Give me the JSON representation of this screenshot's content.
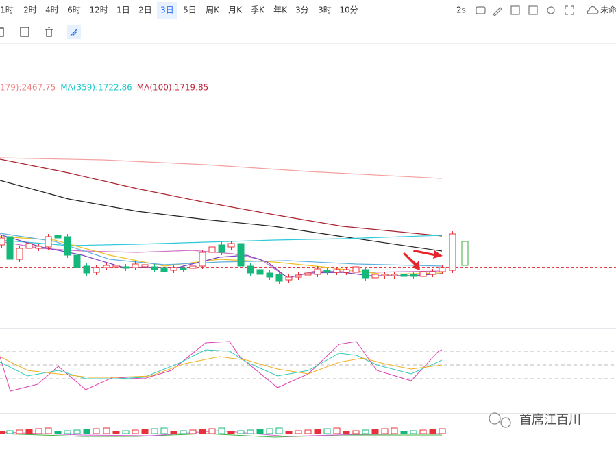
{
  "toolbar": {
    "intervals": [
      "1时",
      "2时",
      "4时",
      "6时",
      "12时",
      "1日",
      "2日",
      "3日",
      "5日",
      "周K",
      "月K",
      "季K",
      "年K",
      "3分",
      "3时",
      "10分"
    ],
    "active": 7,
    "refresh": "2s",
    "layout_name": "未命"
  },
  "legend": [
    {
      "text": "179):2467.75",
      "color": "#f08080"
    },
    {
      "text": "MA(359):1722.86",
      "color": "#1fc8c8"
    },
    {
      "text": "MA(100):1719.85",
      "color": "#c0283c"
    }
  ],
  "watermark": "首席江百川"
}
